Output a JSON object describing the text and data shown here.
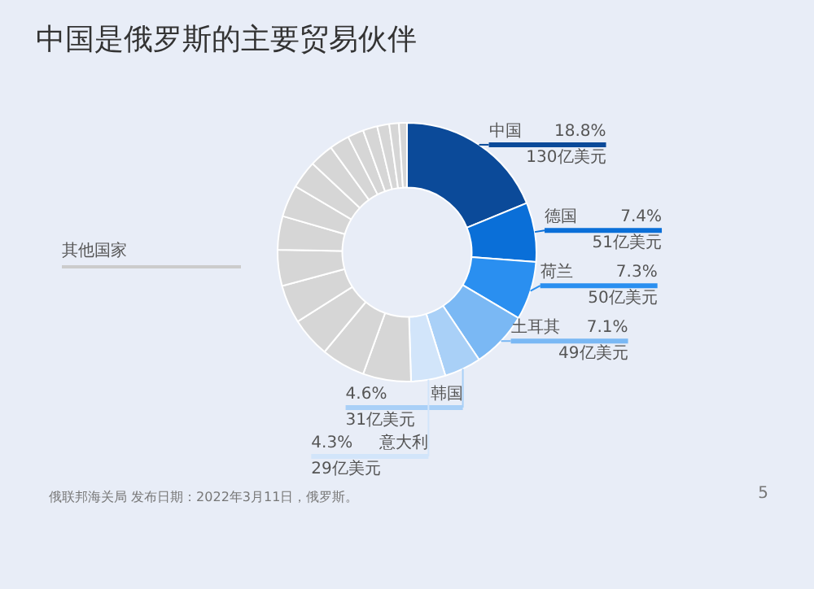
{
  "chart_data": {
    "type": "donut",
    "title": "中国是俄罗斯的主要贸易伙伴",
    "categories": [
      "中国",
      "德国",
      "荷兰",
      "土耳其",
      "韩国",
      "意大利",
      null,
      null,
      null,
      null,
      null,
      null,
      null,
      null,
      null,
      null,
      null,
      null,
      null,
      null,
      null
    ],
    "values": [
      18.8,
      7.4,
      7.3,
      7.1,
      4.6,
      4.3,
      6.0,
      5.5,
      5.0,
      4.8,
      4.5,
      4.2,
      4.0,
      3.5,
      3.0,
      2.5,
      2.0,
      1.8,
      1.5,
      1.2,
      1.0
    ],
    "value_labels": [
      "18.8%\n130亿美元",
      "7.4%\n51亿美元",
      "7.3%\n50亿美元",
      "7.1%\n49亿美元",
      "4.6%\n31亿美元",
      "4.3%\n29亿美元",
      null,
      null,
      null,
      null,
      null,
      null,
      null,
      null,
      null,
      null,
      null,
      null,
      null,
      null,
      null
    ],
    "colors": [
      "#0b4a99",
      "#0a6fd8",
      "#2a8ff0",
      "#7ab8f4",
      "#a9d0f7",
      "#d2e5fa",
      "#d6d6d6",
      "#d6d6d6",
      "#d6d6d6",
      "#d6d6d6",
      "#d6d6d6",
      "#d6d6d6",
      "#d6d6d6",
      "#d6d6d6",
      "#d6d6d6",
      "#d6d6d6",
      "#d6d6d6",
      "#d6d6d6",
      "#d6d6d6",
      "#d6d6d6",
      "#d6d6d6"
    ],
    "annotations": [
      "其他国家",
      "俄联邦海关局 发布日期：2022年3月11日，俄罗斯。",
      "5"
    ],
    "legend": false
  }
}
